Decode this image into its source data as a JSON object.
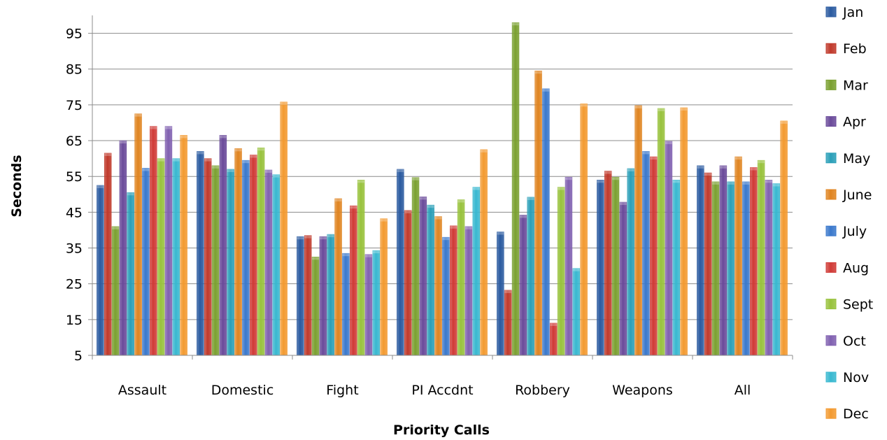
{
  "chart_data": {
    "type": "bar",
    "title": "",
    "xlabel": "Priority Calls",
    "ylabel": "Seconds",
    "ylim": [
      5,
      100
    ],
    "yticks": [
      5,
      15,
      25,
      35,
      45,
      55,
      65,
      75,
      85,
      95
    ],
    "grid": true,
    "legend_position": "right",
    "categories": [
      "Assault",
      "Domestic",
      "Fight",
      "PI Accdnt",
      "Robbery",
      "Weapons",
      "All"
    ],
    "series": [
      {
        "name": "Jan",
        "color": "#2a5aa0",
        "values": [
          52.5,
          62,
          38.2,
          57,
          39.5,
          54,
          58
        ]
      },
      {
        "name": "Feb",
        "color": "#c0392b",
        "values": [
          61.5,
          60,
          38.5,
          45.5,
          23.2,
          56.5,
          56
        ]
      },
      {
        "name": "Mar",
        "color": "#7aa030",
        "values": [
          41,
          58,
          32.5,
          54.7,
          98,
          54.8,
          53.5
        ]
      },
      {
        "name": "Apr",
        "color": "#6a4a9a",
        "values": [
          65,
          66.5,
          38.2,
          49.3,
          44.2,
          47.8,
          58
        ]
      },
      {
        "name": "May",
        "color": "#2a9fb8",
        "values": [
          50.5,
          57,
          38.8,
          47,
          49.2,
          57.2,
          53.5
        ]
      },
      {
        "name": "June",
        "color": "#e08420",
        "values": [
          72.5,
          62.8,
          48.8,
          43.8,
          84.5,
          74.8,
          60.5
        ]
      },
      {
        "name": "July",
        "color": "#3a78cc",
        "values": [
          57.3,
          59.5,
          33.5,
          38,
          79.5,
          62,
          53.5
        ]
      },
      {
        "name": "Aug",
        "color": "#d03a36",
        "values": [
          69,
          61,
          46.8,
          41.2,
          14,
          60.5,
          57.5
        ]
      },
      {
        "name": "Sept",
        "color": "#98c23c",
        "values": [
          60,
          63,
          54,
          48.5,
          52,
          74,
          59.5
        ]
      },
      {
        "name": "Oct",
        "color": "#8060b0",
        "values": [
          69,
          56.8,
          33.2,
          41,
          54.8,
          64.8,
          54
        ]
      },
      {
        "name": "Nov",
        "color": "#38b8d0",
        "values": [
          60,
          55.5,
          34.3,
          52,
          29.3,
          54,
          53
        ]
      },
      {
        "name": "Dec",
        "color": "#f39a30",
        "values": [
          66.5,
          75.8,
          43.2,
          62.5,
          75.3,
          74.2,
          70.5
        ]
      }
    ]
  }
}
